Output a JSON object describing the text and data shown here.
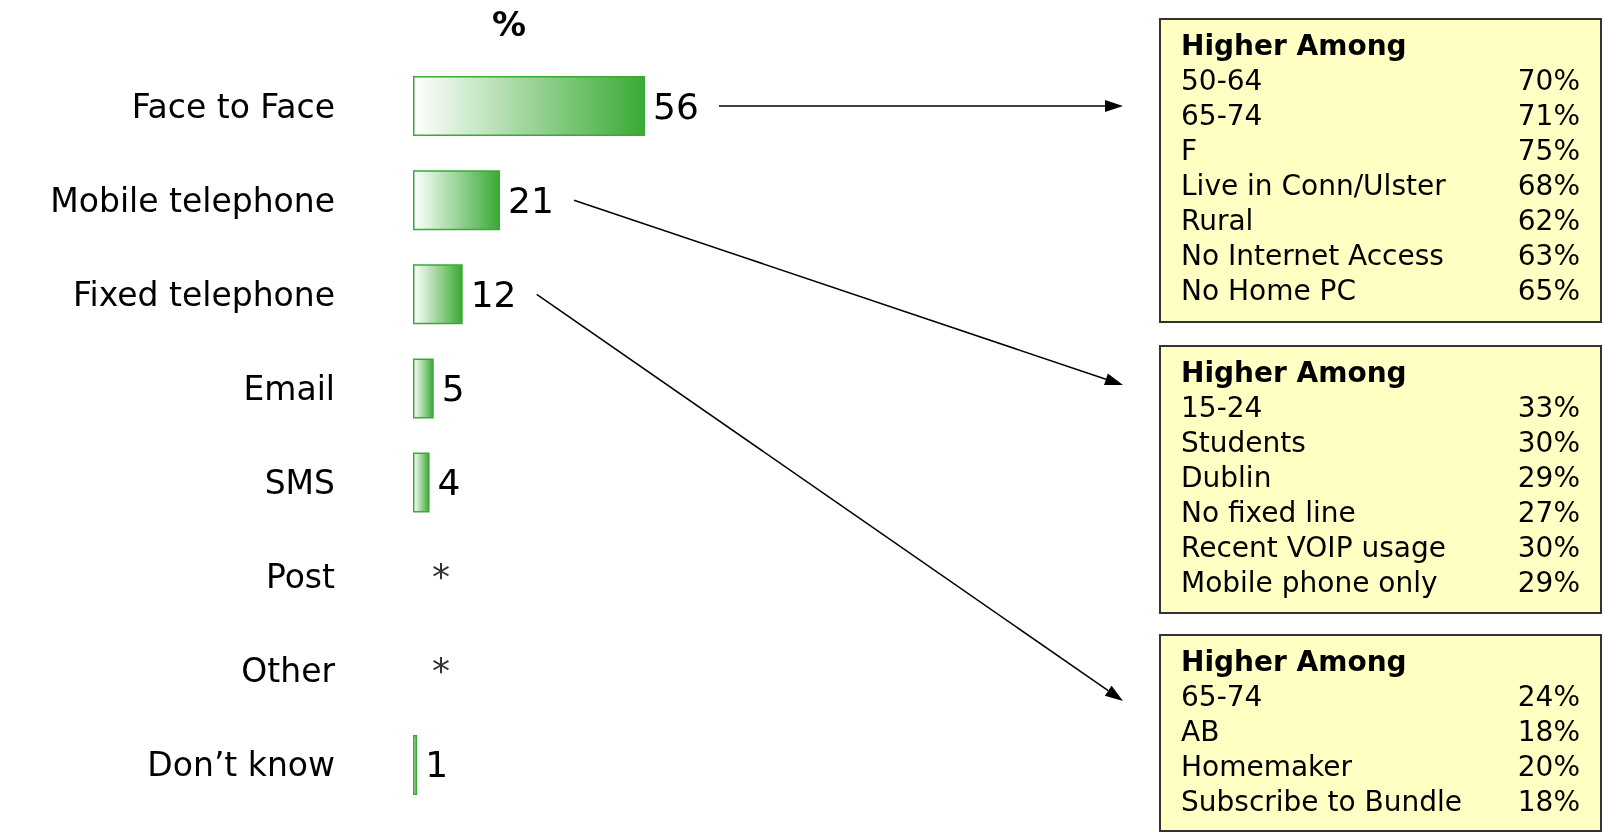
{
  "chart_data": {
    "type": "bar",
    "orientation": "horizontal",
    "title": "%",
    "categories": [
      "Face to Face",
      "Mobile telephone",
      "Fixed telephone",
      "Email",
      "SMS",
      "Post",
      "Other",
      "Don’t know"
    ],
    "values": [
      56,
      21,
      12,
      5,
      4,
      null,
      null,
      1
    ],
    "value_labels": [
      "56",
      "21",
      "12",
      "5",
      "4",
      "*",
      "*",
      "1"
    ],
    "color": "#3aaa35",
    "annotations": [
      "Higher Among",
      "50-64",
      "70%",
      "65-74",
      "71%",
      "F",
      "75%",
      "Live in Conn/Ulster",
      "68%",
      "Rural",
      "62%",
      "No Internet Access",
      "63%",
      "No Home PC",
      "65%",
      "Higher Among",
      "15-24",
      "33%",
      "Students",
      "30%",
      "Dublin",
      "29%",
      "No fixed line",
      "27%",
      "Recent VOIP usage",
      "30%",
      "Mobile phone only",
      "29%",
      "Higher Among",
      "65-74",
      "24%",
      "AB",
      "18%",
      "Homemaker",
      "20%",
      "Subscribe to Bundle",
      "18%"
    ]
  }
}
